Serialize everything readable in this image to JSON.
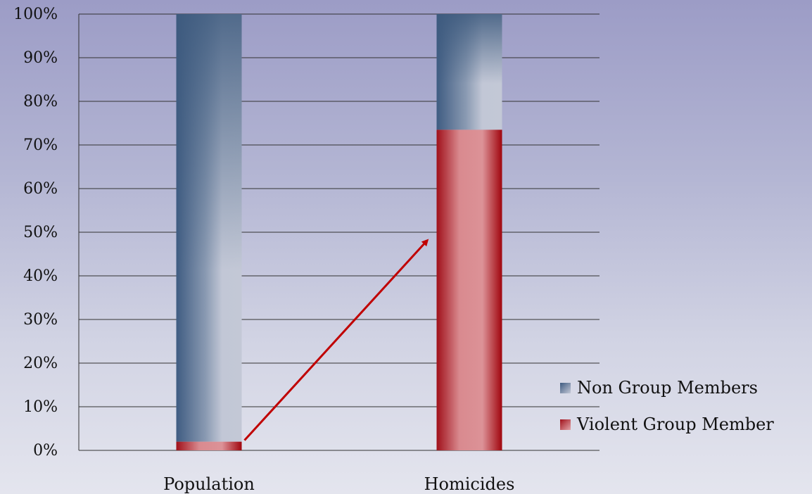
{
  "chart_data": {
    "type": "bar",
    "stacked": true,
    "percent": true,
    "categories": [
      "Population",
      "Homicides"
    ],
    "series": [
      {
        "name": "Violent Group Member",
        "values": [
          2,
          73.5
        ],
        "color": "#b02228"
      },
      {
        "name": "Non Group Members",
        "values": [
          98,
          26.5
        ],
        "color": "#3d5a80"
      }
    ],
    "yticks": [
      "0%",
      "10%",
      "20%",
      "30%",
      "40%",
      "50%",
      "60%",
      "70%",
      "80%",
      "90%",
      "100%"
    ],
    "ylim": [
      0,
      100
    ],
    "grid": true,
    "legend": "right",
    "annotations": [
      {
        "type": "arrow",
        "from": {
          "category": "Population",
          "y": 2
        },
        "to": {
          "category": "Homicides",
          "y": 48
        },
        "color": "#c00000"
      }
    ],
    "title": "",
    "xlabel": "",
    "ylabel": ""
  }
}
